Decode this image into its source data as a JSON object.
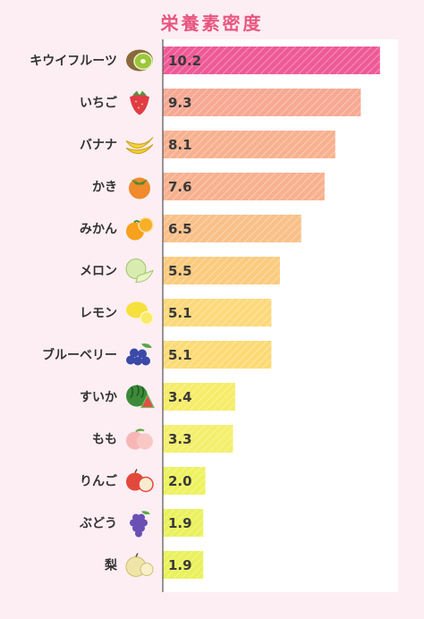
{
  "chart_data": {
    "type": "bar",
    "orientation": "horizontal",
    "title": "栄養素密度",
    "categories": [
      "キウイフルーツ",
      "いちご",
      "バナナ",
      "かき",
      "みかん",
      "メロン",
      "レモン",
      "ブルーベリー",
      "すいか",
      "もも",
      "りんご",
      "ぶどう",
      "梨"
    ],
    "values": [
      10.2,
      9.3,
      8.1,
      7.6,
      6.5,
      5.5,
      5.1,
      5.1,
      3.4,
      3.3,
      2.0,
      1.9,
      1.9
    ],
    "value_labels": [
      "10.2",
      "9.3",
      "8.1",
      "7.6",
      "6.5",
      "5.5",
      "5.1",
      "5.1",
      "3.4",
      "3.3",
      "2.0",
      "1.9",
      "1.9"
    ],
    "icons": [
      "kiwi-icon",
      "strawberry-icon",
      "banana-icon",
      "persimmon-icon",
      "mandarin-icon",
      "melon-icon",
      "lemon-icon",
      "blueberry-icon",
      "watermelon-icon",
      "peach-icon",
      "apple-icon",
      "grape-icon",
      "pear-icon"
    ],
    "bar_colors": [
      "#ee5a97",
      "#f7a994",
      "#f8b18f",
      "#f8b18f",
      "#f9c089",
      "#fbcb7e",
      "#fcd97a",
      "#fcdb76",
      "#f6ec68",
      "#f4ef6c",
      "#edf25f",
      "#eaf15d",
      "#e9f15b"
    ],
    "xlim": [
      0,
      11
    ],
    "grid": false,
    "legend": "none",
    "title_color": "#e8567f"
  }
}
